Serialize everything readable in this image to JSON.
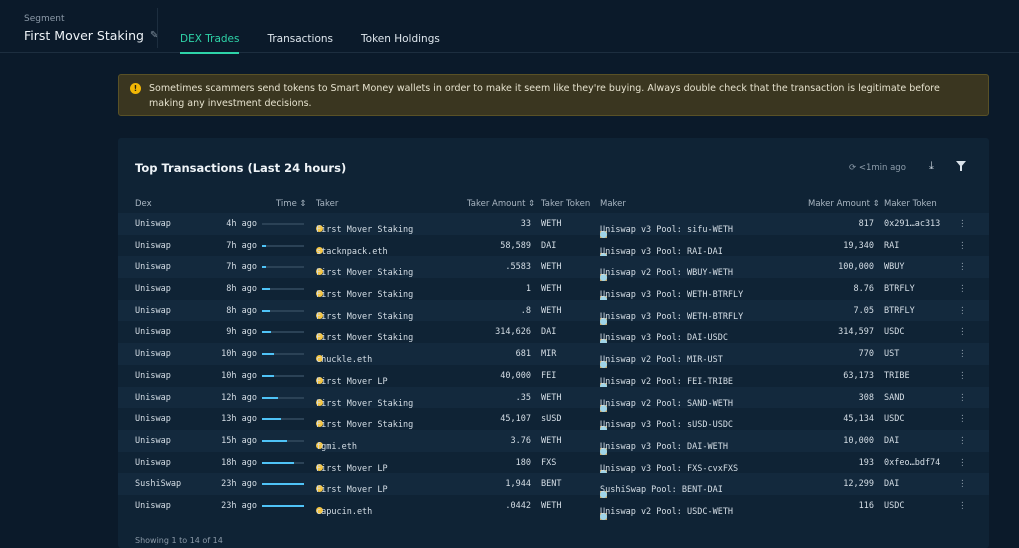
{
  "segment": {
    "label": "Segment",
    "title": "First Mover Staking",
    "edit_icon": "pencil-icon"
  },
  "tabs": [
    {
      "label": "DEX Trades",
      "active": true
    },
    {
      "label": "Transactions",
      "active": false
    },
    {
      "label": "Token Holdings",
      "active": false
    }
  ],
  "warning": {
    "icon": "!",
    "text": "Sometimes scammers send tokens to Smart Money wallets in order to make it seem like they're buying. Always double check that the transaction is legitimate before making any investment decisions."
  },
  "card": {
    "title": "Top Transactions (Last 24 hours)",
    "updated": "⟳ <1min ago"
  },
  "columns": {
    "dex": "Dex",
    "time": "Time ⇕",
    "taker": "Taker",
    "taker_amount": "Taker Amount ⇕",
    "taker_token": "Taker Token",
    "maker": "Maker",
    "maker_amount": "Maker Amount ⇕",
    "maker_token": "Maker Token"
  },
  "rows": [
    {
      "dex": "Uniswap",
      "time": "4h ago",
      "fill": 0.0,
      "taker": "First Mover Staking",
      "taker_amount": "33",
      "taker_token": "WETH",
      "maker": "Uniswap v3 Pool: sifu-WETH",
      "maker_amount": "817",
      "maker_token": "0x291…ac313"
    },
    {
      "dex": "Uniswap",
      "time": "7h ago",
      "fill": 0.1,
      "taker": "stacknpack.eth",
      "taker_amount": "58,589",
      "taker_token": "DAI",
      "maker": "Uniswap v3 Pool: RAI-DAI",
      "maker_amount": "19,340",
      "maker_token": "RAI"
    },
    {
      "dex": "Uniswap",
      "time": "7h ago",
      "fill": 0.1,
      "taker": "First Mover Staking",
      "taker_amount": ".5583",
      "taker_token": "WETH",
      "maker": "Uniswap v2 Pool: WBUY-WETH",
      "maker_amount": "100,000",
      "maker_token": "WBUY"
    },
    {
      "dex": "Uniswap",
      "time": "8h ago",
      "fill": 0.2,
      "taker": "First Mover Staking",
      "taker_amount": "1",
      "taker_token": "WETH",
      "maker": "Uniswap v3 Pool: WETH-BTRFLY",
      "maker_amount": "8.76",
      "maker_token": "BTRFLY"
    },
    {
      "dex": "Uniswap",
      "time": "8h ago",
      "fill": 0.2,
      "taker": "First Mover Staking",
      "taker_amount": ".8",
      "taker_token": "WETH",
      "maker": "Uniswap v3 Pool: WETH-BTRFLY",
      "maker_amount": "7.05",
      "maker_token": "BTRFLY"
    },
    {
      "dex": "Uniswap",
      "time": "9h ago",
      "fill": 0.22,
      "taker": "First Mover Staking",
      "taker_amount": "314,626",
      "taker_token": "DAI",
      "maker": "Uniswap v3 Pool: DAI-USDC",
      "maker_amount": "314,597",
      "maker_token": "USDC"
    },
    {
      "dex": "Uniswap",
      "time": "10h ago",
      "fill": 0.28,
      "taker": "chuckle.eth",
      "taker_amount": "681",
      "taker_token": "MIR",
      "maker": "Uniswap v2 Pool: MIR-UST",
      "maker_amount": "770",
      "maker_token": "UST"
    },
    {
      "dex": "Uniswap",
      "time": "10h ago",
      "fill": 0.28,
      "taker": "First Mover LP",
      "taker_amount": "40,000",
      "taker_token": "FEI",
      "maker": "Uniswap v2 Pool: FEI-TRIBE",
      "maker_amount": "63,173",
      "maker_token": "TRIBE"
    },
    {
      "dex": "Uniswap",
      "time": "12h ago",
      "fill": 0.38,
      "taker": "First Mover Staking",
      "taker_amount": ".35",
      "taker_token": "WETH",
      "maker": "Uniswap v2 Pool: SAND-WETH",
      "maker_amount": "308",
      "maker_token": "SAND"
    },
    {
      "dex": "Uniswap",
      "time": "13h ago",
      "fill": 0.45,
      "taker": "First Mover Staking",
      "taker_amount": "45,107",
      "taker_token": "sUSD",
      "maker": "Uniswap v3 Pool: sUSD-USDC",
      "maker_amount": "45,134",
      "maker_token": "USDC"
    },
    {
      "dex": "Uniswap",
      "time": "15h ago",
      "fill": 0.6,
      "taker": "fgmi.eth",
      "taker_amount": "3.76",
      "taker_token": "WETH",
      "maker": "Uniswap v3 Pool: DAI-WETH",
      "maker_amount": "10,000",
      "maker_token": "DAI"
    },
    {
      "dex": "Uniswap",
      "time": "18h ago",
      "fill": 0.75,
      "taker": "First Mover LP",
      "taker_amount": "180",
      "taker_token": "FXS",
      "maker": "Uniswap v3 Pool: FXS-cvxFXS",
      "maker_amount": "193",
      "maker_token": "0xfeo…bdf74"
    },
    {
      "dex": "SushiSwap",
      "time": "23h ago",
      "fill": 1.0,
      "taker": "First Mover LP",
      "taker_amount": "1,944",
      "taker_token": "BENT",
      "maker": "SushiSwap Pool: BENT-DAI",
      "maker_amount": "12,299",
      "maker_token": "DAI"
    },
    {
      "dex": "Uniswap",
      "time": "23h ago",
      "fill": 1.0,
      "taker": "capucin.eth",
      "taker_amount": ".0442",
      "taker_token": "WETH",
      "maker": "Uniswap v2 Pool: USDC-WETH",
      "maker_amount": "116",
      "maker_token": "USDC"
    }
  ],
  "footer": "Showing 1 to 14 of 14",
  "colors": {
    "accent": "#2ed3a8",
    "bar": "#4fc3f7",
    "warning_bg": "#3a3620"
  }
}
